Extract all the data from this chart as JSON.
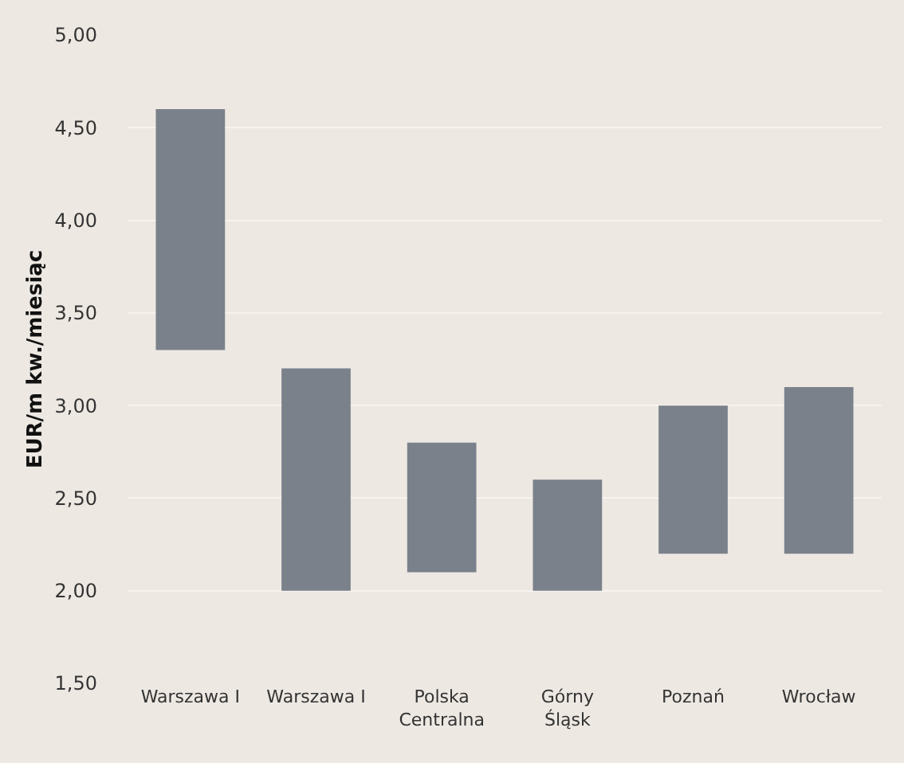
{
  "chart_data": {
    "type": "bar",
    "ylabel": "EUR/m kw./miesiąc",
    "categories": [
      "Warszawa I",
      "Warszawa I",
      "Polska Centralna",
      "Górny Śląsk",
      "Poznań",
      "Wrocław"
    ],
    "base": [
      3.3,
      2.0,
      2.1,
      2.0,
      2.2,
      2.2
    ],
    "values": [
      1.3,
      1.2,
      0.7,
      0.6,
      0.8,
      0.9
    ],
    "color": "#7b818b",
    "ylim": [
      1.5,
      5.0
    ],
    "yticks": [
      {
        "value": 1.5,
        "label": "1,50"
      },
      {
        "value": 2.0,
        "label": "2,00"
      },
      {
        "value": 2.5,
        "label": "2,50"
      },
      {
        "value": 3.0,
        "label": "3,00"
      },
      {
        "value": 3.5,
        "label": "3,50"
      },
      {
        "value": 4.0,
        "label": "4,00"
      },
      {
        "value": 4.5,
        "label": "4,50"
      },
      {
        "value": 5.0,
        "label": "5,00"
      }
    ],
    "grid": "y"
  }
}
